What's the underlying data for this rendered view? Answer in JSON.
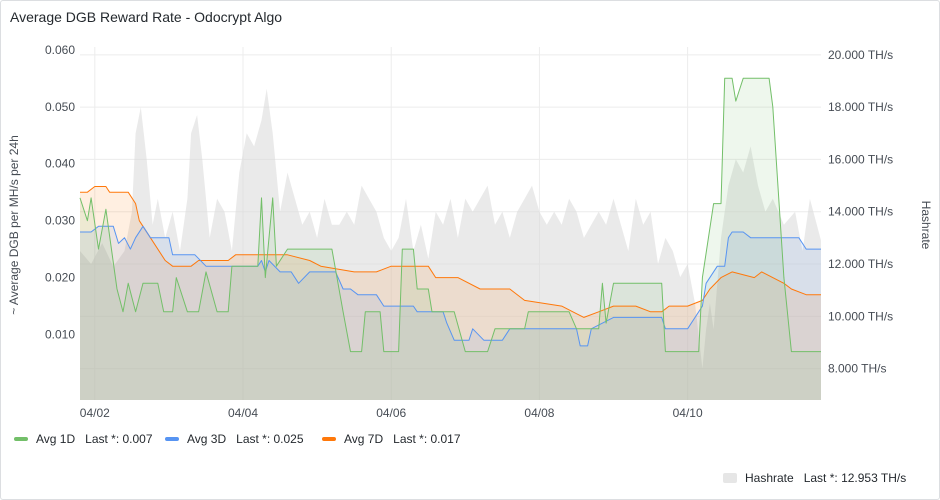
{
  "panel": {
    "title": "Average DGB Reward Rate - Odocrypt Algo"
  },
  "chart_data": {
    "type": "line",
    "title": "Average DGB Reward Rate - Odocrypt Algo",
    "ylabel": "~ Average DGB per MH/s per 24h",
    "y2label": "Hashrate",
    "x_ticks": [
      "04/02",
      "04/04",
      "04/06",
      "04/08",
      "04/10"
    ],
    "x_tick_days": [
      2,
      4,
      6,
      8,
      10
    ],
    "xlim_days": [
      1.8,
      11.8
    ],
    "ylim": [
      -0.0015,
      0.0605
    ],
    "y_ticks": [
      0.01,
      0.02,
      0.03,
      0.04,
      0.05,
      0.06
    ],
    "y_tick_labels": [
      "0.010",
      "0.020",
      "0.030",
      "0.040",
      "0.050",
      "0.060"
    ],
    "y2lim": [
      6.8,
      20.3
    ],
    "y2_ticks": [
      8,
      10,
      12,
      14,
      16,
      18,
      20
    ],
    "y2_tick_labels": [
      "8.000 TH/s",
      "10.000 TH/s",
      "12.000 TH/s",
      "14.000 TH/s",
      "16.000 TH/s",
      "18.000 TH/s",
      "20.000 TH/s"
    ],
    "grid": true,
    "legend_position": "bottom",
    "series": [
      {
        "name": "Avg 1D",
        "color": "#73bf69",
        "axis": "left",
        "last": "0.007",
        "points": [
          [
            1.8,
            0.034
          ],
          [
            1.9,
            0.03
          ],
          [
            1.95,
            0.034
          ],
          [
            2.05,
            0.025
          ],
          [
            2.15,
            0.032
          ],
          [
            2.3,
            0.018
          ],
          [
            2.38,
            0.014
          ],
          [
            2.45,
            0.019
          ],
          [
            2.55,
            0.014
          ],
          [
            2.65,
            0.019
          ],
          [
            2.85,
            0.019
          ],
          [
            2.93,
            0.014
          ],
          [
            3.05,
            0.014
          ],
          [
            3.1,
            0.02
          ],
          [
            3.25,
            0.014
          ],
          [
            3.4,
            0.014
          ],
          [
            3.5,
            0.021
          ],
          [
            3.65,
            0.014
          ],
          [
            3.8,
            0.014
          ],
          [
            3.85,
            0.022
          ],
          [
            3.95,
            0.022
          ],
          [
            4.05,
            0.022
          ],
          [
            4.2,
            0.022
          ],
          [
            4.25,
            0.034
          ],
          [
            4.3,
            0.02
          ],
          [
            4.4,
            0.034
          ],
          [
            4.45,
            0.022
          ],
          [
            4.6,
            0.025
          ],
          [
            5.0,
            0.025
          ],
          [
            5.2,
            0.025
          ],
          [
            5.35,
            0.014
          ],
          [
            5.45,
            0.007
          ],
          [
            5.6,
            0.007
          ],
          [
            5.65,
            0.014
          ],
          [
            5.85,
            0.014
          ],
          [
            5.9,
            0.007
          ],
          [
            6.1,
            0.007
          ],
          [
            6.15,
            0.025
          ],
          [
            6.3,
            0.025
          ],
          [
            6.35,
            0.018
          ],
          [
            6.5,
            0.018
          ],
          [
            6.55,
            0.014
          ],
          [
            6.85,
            0.014
          ],
          [
            7.0,
            0.007
          ],
          [
            7.3,
            0.007
          ],
          [
            7.4,
            0.011
          ],
          [
            7.8,
            0.011
          ],
          [
            7.85,
            0.014
          ],
          [
            8.4,
            0.014
          ],
          [
            8.5,
            0.011
          ],
          [
            8.8,
            0.011
          ],
          [
            8.85,
            0.019
          ],
          [
            8.9,
            0.012
          ],
          [
            9.0,
            0.019
          ],
          [
            9.3,
            0.019
          ],
          [
            9.5,
            0.019
          ],
          [
            9.65,
            0.019
          ],
          [
            9.7,
            0.007
          ],
          [
            9.9,
            0.007
          ],
          [
            10.05,
            0.007
          ],
          [
            10.15,
            0.007
          ],
          [
            10.2,
            0.02
          ],
          [
            10.35,
            0.033
          ],
          [
            10.45,
            0.033
          ],
          [
            10.5,
            0.055
          ],
          [
            10.6,
            0.055
          ],
          [
            10.65,
            0.051
          ],
          [
            10.75,
            0.055
          ],
          [
            11.1,
            0.055
          ],
          [
            11.15,
            0.05
          ],
          [
            11.3,
            0.02
          ],
          [
            11.4,
            0.007
          ],
          [
            11.8,
            0.007
          ]
        ]
      },
      {
        "name": "Avg 3D",
        "color": "#5794f2",
        "axis": "left",
        "last": "0.025",
        "points": [
          [
            1.8,
            0.028
          ],
          [
            1.95,
            0.028
          ],
          [
            2.05,
            0.029
          ],
          [
            2.25,
            0.029
          ],
          [
            2.32,
            0.026
          ],
          [
            2.4,
            0.027
          ],
          [
            2.48,
            0.025
          ],
          [
            2.55,
            0.027
          ],
          [
            2.65,
            0.029
          ],
          [
            2.75,
            0.027
          ],
          [
            3.0,
            0.027
          ],
          [
            3.05,
            0.024
          ],
          [
            3.35,
            0.024
          ],
          [
            3.5,
            0.022
          ],
          [
            3.95,
            0.022
          ],
          [
            4.2,
            0.022
          ],
          [
            4.25,
            0.023
          ],
          [
            4.3,
            0.021
          ],
          [
            4.35,
            0.023
          ],
          [
            4.5,
            0.021
          ],
          [
            4.65,
            0.021
          ],
          [
            4.75,
            0.019
          ],
          [
            4.9,
            0.021
          ],
          [
            5.25,
            0.021
          ],
          [
            5.35,
            0.018
          ],
          [
            5.45,
            0.018
          ],
          [
            5.55,
            0.017
          ],
          [
            5.8,
            0.017
          ],
          [
            5.9,
            0.015
          ],
          [
            6.3,
            0.015
          ],
          [
            6.35,
            0.014
          ],
          [
            6.7,
            0.014
          ],
          [
            6.75,
            0.012
          ],
          [
            6.85,
            0.009
          ],
          [
            7.05,
            0.009
          ],
          [
            7.1,
            0.011
          ],
          [
            7.25,
            0.009
          ],
          [
            7.5,
            0.009
          ],
          [
            7.6,
            0.011
          ],
          [
            8.5,
            0.011
          ],
          [
            8.55,
            0.008
          ],
          [
            8.65,
            0.008
          ],
          [
            8.7,
            0.011
          ],
          [
            9.0,
            0.013
          ],
          [
            9.3,
            0.013
          ],
          [
            9.65,
            0.013
          ],
          [
            9.7,
            0.011
          ],
          [
            10.0,
            0.011
          ],
          [
            10.2,
            0.015
          ],
          [
            10.25,
            0.019
          ],
          [
            10.4,
            0.022
          ],
          [
            10.5,
            0.022
          ],
          [
            10.55,
            0.027
          ],
          [
            10.6,
            0.028
          ],
          [
            10.75,
            0.028
          ],
          [
            10.85,
            0.027
          ],
          [
            11.35,
            0.027
          ],
          [
            11.5,
            0.027
          ],
          [
            11.6,
            0.025
          ],
          [
            11.8,
            0.025
          ]
        ]
      },
      {
        "name": "Avg 7D",
        "color": "#ff780a",
        "axis": "left",
        "last": "0.017",
        "points": [
          [
            1.8,
            0.035
          ],
          [
            1.9,
            0.035
          ],
          [
            2.0,
            0.036
          ],
          [
            2.15,
            0.036
          ],
          [
            2.2,
            0.035
          ],
          [
            2.45,
            0.035
          ],
          [
            2.55,
            0.033
          ],
          [
            2.6,
            0.03
          ],
          [
            2.75,
            0.027
          ],
          [
            2.95,
            0.023
          ],
          [
            3.05,
            0.022
          ],
          [
            3.3,
            0.022
          ],
          [
            3.4,
            0.023
          ],
          [
            3.8,
            0.023
          ],
          [
            3.9,
            0.024
          ],
          [
            4.6,
            0.024
          ],
          [
            4.9,
            0.023
          ],
          [
            5.05,
            0.022
          ],
          [
            5.5,
            0.021
          ],
          [
            5.8,
            0.021
          ],
          [
            6.0,
            0.022
          ],
          [
            6.5,
            0.022
          ],
          [
            6.6,
            0.02
          ],
          [
            6.9,
            0.02
          ],
          [
            7.2,
            0.018
          ],
          [
            7.6,
            0.018
          ],
          [
            7.8,
            0.016
          ],
          [
            8.3,
            0.015
          ],
          [
            8.45,
            0.014
          ],
          [
            8.6,
            0.013
          ],
          [
            8.8,
            0.014
          ],
          [
            9.0,
            0.015
          ],
          [
            9.3,
            0.015
          ],
          [
            9.5,
            0.014
          ],
          [
            9.65,
            0.014
          ],
          [
            9.75,
            0.015
          ],
          [
            10.0,
            0.015
          ],
          [
            10.2,
            0.016
          ],
          [
            10.3,
            0.018
          ],
          [
            10.45,
            0.02
          ],
          [
            10.6,
            0.021
          ],
          [
            10.9,
            0.02
          ],
          [
            11.0,
            0.021
          ],
          [
            11.3,
            0.019
          ],
          [
            11.4,
            0.018
          ],
          [
            11.6,
            0.017
          ],
          [
            11.8,
            0.017
          ]
        ]
      },
      {
        "name": "Hashrate",
        "color": "#d0d0d0",
        "axis": "right",
        "last": "12.953 TH/s",
        "points": [
          [
            1.8,
            12.5
          ],
          [
            1.95,
            12.0
          ],
          [
            2.1,
            12.8
          ],
          [
            2.25,
            11.9
          ],
          [
            2.4,
            12.5
          ],
          [
            2.5,
            14.0
          ],
          [
            2.55,
            17.0
          ],
          [
            2.62,
            18.0
          ],
          [
            2.7,
            16.0
          ],
          [
            2.78,
            13.5
          ],
          [
            2.85,
            14.5
          ],
          [
            2.95,
            13.0
          ],
          [
            3.05,
            14.0
          ],
          [
            3.15,
            12.5
          ],
          [
            3.25,
            14.5
          ],
          [
            3.3,
            17.0
          ],
          [
            3.38,
            17.7
          ],
          [
            3.45,
            16.0
          ],
          [
            3.55,
            13.0
          ],
          [
            3.65,
            14.5
          ],
          [
            3.75,
            14.0
          ],
          [
            3.85,
            12.5
          ],
          [
            3.95,
            15.5
          ],
          [
            4.05,
            17.0
          ],
          [
            4.15,
            16.5
          ],
          [
            4.25,
            17.5
          ],
          [
            4.32,
            18.7
          ],
          [
            4.4,
            17.0
          ],
          [
            4.5,
            14.0
          ],
          [
            4.6,
            15.5
          ],
          [
            4.7,
            14.5
          ],
          [
            4.8,
            13.5
          ],
          [
            4.9,
            14.0
          ],
          [
            5.0,
            13.0
          ],
          [
            5.1,
            14.5
          ],
          [
            5.2,
            13.5
          ],
          [
            5.3,
            13.5
          ],
          [
            5.4,
            14.0
          ],
          [
            5.5,
            13.5
          ],
          [
            5.6,
            15.0
          ],
          [
            5.7,
            14.5
          ],
          [
            5.8,
            14.0
          ],
          [
            5.9,
            13.0
          ],
          [
            6.0,
            12.5
          ],
          [
            6.1,
            13.0
          ],
          [
            6.2,
            14.5
          ],
          [
            6.3,
            12.5
          ],
          [
            6.4,
            13.5
          ],
          [
            6.5,
            12.2
          ],
          [
            6.6,
            14.0
          ],
          [
            6.7,
            13.5
          ],
          [
            6.8,
            14.5
          ],
          [
            6.9,
            13.0
          ],
          [
            7.0,
            14.5
          ],
          [
            7.1,
            14.0
          ],
          [
            7.2,
            14.5
          ],
          [
            7.3,
            15.0
          ],
          [
            7.4,
            13.5
          ],
          [
            7.5,
            14.0
          ],
          [
            7.6,
            13.0
          ],
          [
            7.7,
            14.0
          ],
          [
            7.8,
            14.5
          ],
          [
            7.9,
            15.0
          ],
          [
            8.0,
            14.0
          ],
          [
            8.1,
            13.5
          ],
          [
            8.2,
            14.0
          ],
          [
            8.3,
            13.5
          ],
          [
            8.4,
            14.5
          ],
          [
            8.5,
            14.0
          ],
          [
            8.6,
            13.0
          ],
          [
            8.7,
            13.5
          ],
          [
            8.8,
            14.0
          ],
          [
            8.9,
            13.5
          ],
          [
            9.0,
            14.5
          ],
          [
            9.1,
            13.5
          ],
          [
            9.2,
            12.5
          ],
          [
            9.3,
            14.5
          ],
          [
            9.4,
            13.5
          ],
          [
            9.5,
            14.0
          ],
          [
            9.6,
            12.0
          ],
          [
            9.7,
            13.0
          ],
          [
            9.8,
            12.5
          ],
          [
            9.9,
            11.5
          ],
          [
            10.0,
            12.0
          ],
          [
            10.1,
            10.5
          ],
          [
            10.2,
            8.0
          ],
          [
            10.25,
            9.5
          ],
          [
            10.3,
            10.5
          ],
          [
            10.35,
            9.5
          ],
          [
            10.45,
            13.0
          ],
          [
            10.55,
            15.0
          ],
          [
            10.65,
            16.0
          ],
          [
            10.75,
            15.5
          ],
          [
            10.85,
            16.5
          ],
          [
            10.95,
            15.0
          ],
          [
            11.05,
            14.0
          ],
          [
            11.15,
            14.5
          ],
          [
            11.3,
            13.5
          ],
          [
            11.45,
            14.0
          ],
          [
            11.55,
            12.5
          ],
          [
            11.65,
            14.5
          ],
          [
            11.8,
            12.9
          ]
        ]
      }
    ]
  }
}
